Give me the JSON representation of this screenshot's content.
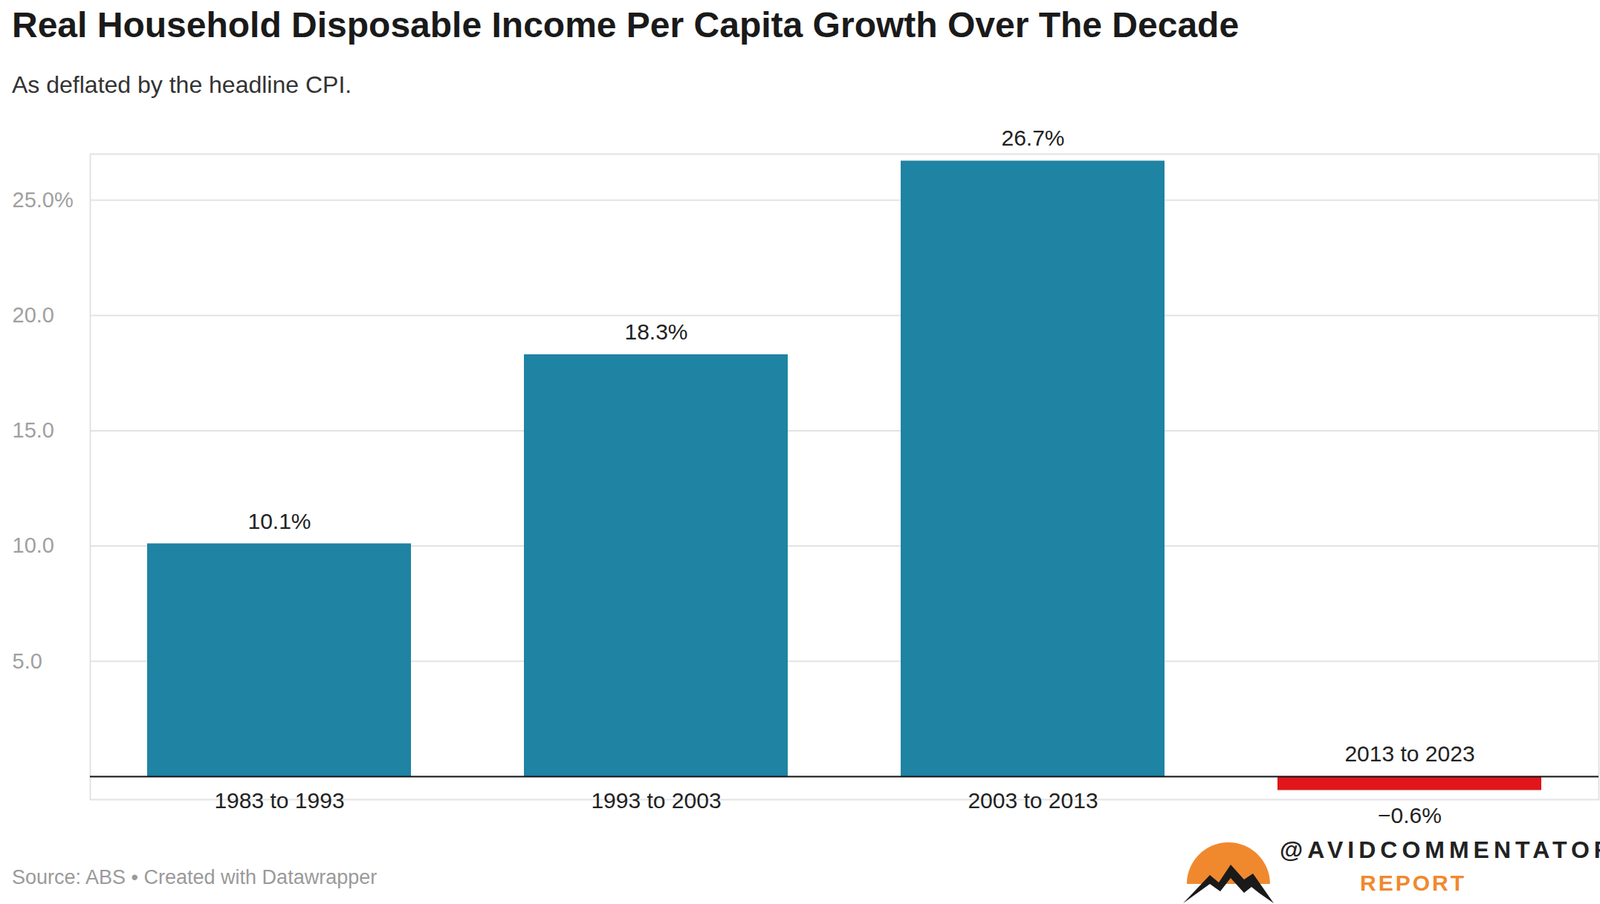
{
  "chart_data": {
    "type": "bar",
    "title": "Real Household Disposable Income Per Capita Growth Over The Decade",
    "subtitle": "As deflated by the headline CPI.",
    "categories": [
      "1983 to 1993",
      "1993 to 2003",
      "2003 to 2013",
      "2013 to 2023"
    ],
    "values": [
      10.1,
      18.3,
      26.7,
      -0.6
    ],
    "value_labels": [
      "10.1%",
      "18.3%",
      "26.7%",
      "−0.6%"
    ],
    "colors": [
      "#1f83a3",
      "#1f83a3",
      "#1f83a3",
      "#e0161b"
    ],
    "ylim": [
      -1,
      27
    ],
    "yticks": [
      {
        "value": 5,
        "label": "5.0"
      },
      {
        "value": 10,
        "label": "10.0"
      },
      {
        "value": 15,
        "label": "15.0"
      },
      {
        "value": 20,
        "label": "20.0"
      },
      {
        "value": 25,
        "label": "25.0%"
      }
    ],
    "grid": true,
    "data_labels": true,
    "source": "Source: ABS • Created with Datawrapper",
    "credit": [
      "@AVIDCOMMENTATOR",
      "REPORT"
    ]
  }
}
